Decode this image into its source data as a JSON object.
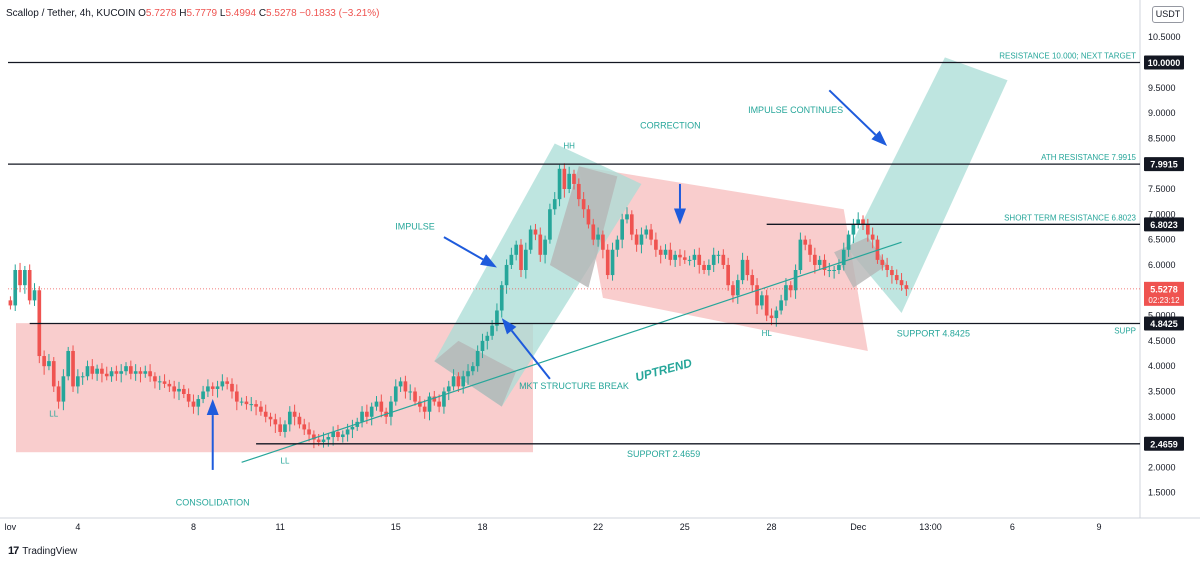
{
  "header": {
    "symbol": "Scallop / Tether, 4h, KUCOIN",
    "o_label": "O",
    "o_value": "5.7278",
    "h_label": "H",
    "h_value": "5.7779",
    "l_label": "L",
    "l_value": "5.4994",
    "c_label": "C",
    "c_value": "5.5278",
    "change": "−0.1833 (−3.21%)"
  },
  "currency_badge": "USDT",
  "branding": {
    "logo": "17",
    "name": "TradingView"
  },
  "colors": {
    "up": "#26a69a",
    "down": "#ef5350",
    "box_red": "#f7bcbc",
    "box_teal": "#a8dcd6",
    "box_gray": "#b5b5b5",
    "teal_text": "#26a69a",
    "arrow_blue": "#1e5bdc",
    "line": "#131722"
  },
  "chart_data": {
    "type": "candlestick",
    "title": "Scallop / Tether, 4h, KUCOIN",
    "y_axis": {
      "ylim": [
        1.0,
        10.8
      ],
      "ticks": [
        "1.5000",
        "2.0000",
        "2.5000",
        "3.0000",
        "3.5000",
        "4.0000",
        "4.5000",
        "5.0000",
        "5.5000",
        "6.0000",
        "6.5000",
        "7.0000",
        "7.5000",
        "8.0000",
        "8.5000",
        "9.0000",
        "9.5000",
        "10.0000",
        "10.5000"
      ]
    },
    "x_axis": {
      "tick_labels": [
        {
          "label": "lov",
          "bar": 0
        },
        {
          "label": "4",
          "bar": 14
        },
        {
          "label": "8",
          "bar": 38
        },
        {
          "label": "11",
          "bar": 56
        },
        {
          "label": "15",
          "bar": 80
        },
        {
          "label": "18",
          "bar": 98
        },
        {
          "label": "22",
          "bar": 122
        },
        {
          "label": "25",
          "bar": 140
        },
        {
          "label": "28",
          "bar": 158
        },
        {
          "label": "Dec",
          "bar": 176
        },
        {
          "label": "13:00",
          "bar": 191
        },
        {
          "label": "6",
          "bar": 208
        },
        {
          "label": "9",
          "bar": 226
        }
      ],
      "total_bars": 235
    },
    "closes": [
      5.2,
      5.9,
      5.6,
      5.9,
      5.3,
      5.5,
      4.2,
      4.0,
      4.1,
      3.6,
      3.3,
      3.8,
      4.3,
      3.6,
      3.8,
      3.8,
      4.0,
      3.85,
      3.95,
      3.85,
      3.8,
      3.9,
      3.85,
      3.9,
      4.0,
      3.85,
      3.9,
      3.85,
      3.9,
      3.8,
      3.7,
      3.7,
      3.65,
      3.6,
      3.5,
      3.55,
      3.45,
      3.3,
      3.2,
      3.35,
      3.5,
      3.6,
      3.55,
      3.6,
      3.7,
      3.65,
      3.5,
      3.3,
      3.3,
      3.25,
      3.25,
      3.2,
      3.1,
      3.0,
      2.95,
      2.85,
      2.7,
      2.85,
      3.1,
      3.0,
      2.85,
      2.75,
      2.65,
      2.55,
      2.5,
      2.55,
      2.6,
      2.7,
      2.6,
      2.65,
      2.75,
      2.8,
      2.9,
      3.1,
      3.0,
      3.2,
      3.3,
      3.1,
      3.0,
      3.3,
      3.6,
      3.7,
      3.5,
      3.5,
      3.3,
      3.2,
      3.1,
      3.4,
      3.3,
      3.2,
      3.5,
      3.6,
      3.8,
      3.6,
      3.8,
      3.9,
      4.0,
      4.3,
      4.5,
      4.6,
      4.8,
      5.1,
      5.6,
      6.0,
      6.2,
      6.4,
      5.9,
      6.3,
      6.7,
      6.6,
      6.2,
      6.5,
      7.1,
      7.3,
      7.9,
      7.5,
      7.8,
      7.6,
      7.3,
      7.1,
      6.8,
      6.5,
      6.6,
      6.3,
      5.8,
      6.3,
      6.5,
      6.9,
      7.0,
      6.6,
      6.4,
      6.6,
      6.7,
      6.5,
      6.3,
      6.2,
      6.3,
      6.1,
      6.2,
      6.15,
      6.1,
      6.1,
      6.2,
      6.0,
      5.9,
      6.0,
      6.2,
      6.2,
      6.0,
      5.6,
      5.4,
      5.7,
      6.1,
      5.8,
      5.6,
      5.2,
      5.4,
      5.0,
      4.95,
      5.1,
      5.3,
      5.6,
      5.5,
      5.9,
      6.5,
      6.4,
      6.2,
      6.0,
      6.1,
      5.9,
      5.9,
      5.9,
      6.0,
      6.3,
      6.6,
      6.8,
      6.9,
      6.8,
      6.6,
      6.5,
      6.1,
      6.0,
      5.9,
      5.8,
      5.7,
      5.6,
      5.5278
    ],
    "levels": [
      {
        "value": 10.0,
        "label": "10.0000",
        "text": "RESISTANCE 10.000; NEXT TARGET"
      },
      {
        "value": 7.9915,
        "label": "7.9915",
        "text": "ATH  RESISTANCE 7.9915"
      },
      {
        "value": 6.8023,
        "label": "6.8023",
        "text": "SHORT TERM RESISTANCE 6.8023"
      },
      {
        "value": 4.8425,
        "label": "4.8425",
        "text": "SUPPORT 4.8425",
        "text2": "SUPP"
      },
      {
        "value": 2.4659,
        "label": "2.4659",
        "text": "SUPPORT 2.4659"
      }
    ],
    "current_price": {
      "value": 5.5278,
      "label": "5.5278",
      "countdown": "02:23:12"
    },
    "annotations": {
      "ll1": "LL",
      "ll2": "LL",
      "hh": "HH",
      "hl": "HL",
      "impulse": "IMPULSE",
      "correction": "CORRECTION",
      "impulse_continues": "IMPULSE CONTINUES",
      "mkt_structure_break": "MKT STRUCTURE BREAK",
      "consolidation": "CONSOLIDATION",
      "uptrend": "UPTREND"
    }
  }
}
